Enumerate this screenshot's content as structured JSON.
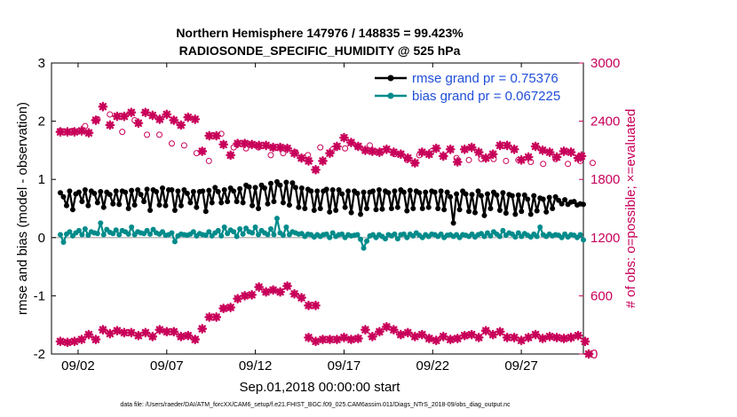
{
  "chart_data": {
    "type": "line",
    "title": "Northern Hemisphere 147976 / 148835 = 99.423%",
    "subtitle": "RADIOSONDE_SPECIFIC_HUMIDITY @ 525 hPa",
    "xlabel": "Sep.01,2018 00:00:00 start",
    "ylabel": "rmse and bias (model - observation)",
    "ylabel_right": "# of obs: o=possible; ×=evaluated",
    "footnote": "data file: /Users/raeder/DAI/ATM_forcXX/CAM6_setup/f.e21.FHIST_BGC.f09_025.CAM6assim.011/Diags_NTrS_2018-09/obs_diag_output.nc",
    "xlim": [
      0.5,
      30.5
    ],
    "ylim": [
      -2,
      3
    ],
    "ylim_right": [
      0,
      3000
    ],
    "x_ticks": [
      2,
      7,
      12,
      17,
      22,
      27
    ],
    "x_tick_labels": [
      "09/02",
      "09/07",
      "09/12",
      "09/17",
      "09/22",
      "09/27"
    ],
    "y_ticks": [
      -2,
      -1,
      0,
      1,
      2,
      3
    ],
    "y_tick_labels": [
      "-2",
      "-1",
      "0",
      "1",
      "2",
      "3"
    ],
    "y_right_ticks": [
      0,
      600,
      1200,
      1800,
      2400,
      3000
    ],
    "y_right_tick_labels": [
      "0",
      "600",
      "1200",
      "1800",
      "2400",
      "3000"
    ],
    "legend": [
      "rmse grand pr = 0.75376",
      "bias grand pr = 0.067225"
    ],
    "colors": {
      "rmse": "#000000",
      "bias": "#008b8b",
      "obs": "#c8005a",
      "zero_line": "#bbbbbb"
    },
    "series": [
      {
        "name": "rmse",
        "values": [
          0.77,
          0.7,
          0.55,
          0.8,
          0.48,
          0.75,
          0.78,
          0.62,
          0.82,
          0.55,
          0.8,
          0.76,
          0.6,
          0.79,
          0.52,
          0.78,
          0.74,
          0.58,
          0.8,
          0.57,
          0.8,
          0.78,
          0.5,
          0.81,
          0.56,
          0.82,
          0.74,
          0.62,
          0.83,
          0.47,
          0.82,
          0.79,
          0.56,
          0.85,
          0.55,
          0.82,
          0.82,
          0.47,
          0.8,
          0.55,
          0.82,
          0.76,
          0.6,
          0.79,
          0.52,
          0.79,
          0.8,
          0.45,
          0.81,
          0.6,
          0.86,
          0.79,
          0.6,
          0.82,
          0.62,
          0.85,
          0.8,
          0.62,
          0.84,
          0.6,
          0.9,
          0.87,
          0.55,
          0.86,
          0.5,
          0.9,
          0.85,
          0.58,
          0.93,
          0.62,
          0.96,
          0.9,
          0.6,
          0.95,
          0.56,
          0.94,
          0.86,
          0.52,
          0.85,
          0.5,
          0.83,
          0.8,
          0.47,
          0.8,
          0.5,
          0.8,
          0.83,
          0.44,
          0.82,
          0.47,
          0.82,
          0.75,
          0.52,
          0.8,
          0.43,
          0.8,
          0.76,
          0.4,
          0.78,
          0.5,
          0.78,
          0.8,
          0.48,
          0.82,
          0.49,
          0.8,
          0.77,
          0.5,
          0.8,
          0.52,
          0.82,
          0.78,
          0.46,
          0.81,
          0.5,
          0.8,
          0.77,
          0.5,
          0.78,
          0.52,
          0.8,
          0.78,
          0.5,
          0.8,
          0.48,
          0.78,
          0.7,
          0.25,
          0.75,
          0.48,
          0.8,
          0.75,
          0.45,
          0.74,
          0.43,
          0.8,
          0.72,
          0.38,
          0.75,
          0.5,
          0.78,
          0.73,
          0.47,
          0.77,
          0.42,
          0.74,
          0.72,
          0.4,
          0.73,
          0.45,
          0.73,
          0.66,
          0.4,
          0.72,
          0.46,
          0.68,
          0.66,
          0.44,
          0.69,
          0.5,
          0.7,
          0.64,
          0.58,
          0.65,
          0.57,
          0.61,
          0.62,
          0.56,
          0.58,
          0.57
        ]
      },
      {
        "name": "bias",
        "values": [
          0.05,
          -0.08,
          0.06,
          0.1,
          0.03,
          0.08,
          0.12,
          0.05,
          0.15,
          0.04,
          0.1,
          0.08,
          0.07,
          0.25,
          0.05,
          0.14,
          0.09,
          0.07,
          0.13,
          0.05,
          0.12,
          0.1,
          0.06,
          0.18,
          0.05,
          0.1,
          0.08,
          0.07,
          0.12,
          0.06,
          0.14,
          0.08,
          0.06,
          0.1,
          0.04,
          0.05,
          0.08,
          -0.07,
          0.03,
          0.06,
          0.05,
          0.04,
          0.06,
          0.1,
          0.03,
          0.07,
          0.05,
          0.04,
          0.1,
          0.03,
          0.08,
          0.12,
          0.03,
          0.18,
          0.07,
          0.13,
          0.1,
          0.02,
          0.15,
          0.06,
          0.16,
          0.1,
          0.08,
          0.18,
          0.05,
          0.12,
          0.08,
          0.05,
          0.15,
          0.05,
          0.33,
          0.08,
          0.04,
          0.18,
          0.05,
          0.1,
          0.08,
          0.06,
          0.07,
          0.02,
          0.06,
          0.05,
          0.01,
          0.05,
          0.02,
          0.05,
          0.06,
          0.0,
          0.08,
          0.02,
          0.05,
          0.06,
          0.0,
          0.05,
          0.03,
          0.04,
          0.05,
          -0.03,
          -0.18,
          -0.06,
          0.03,
          0.05,
          0.0,
          0.05,
          0.02,
          -0.02,
          0.05,
          0.03,
          0.06,
          -0.02,
          0.05,
          0.06,
          0.0,
          0.06,
          0.03,
          0.08,
          0.04,
          0.0,
          0.05,
          0.02,
          0.06,
          0.05,
          0.02,
          0.06,
          0.0,
          0.04,
          0.05,
          0.02,
          0.05,
          0.0,
          0.05,
          0.04,
          0.02,
          0.06,
          0.01,
          0.05,
          0.07,
          0.02,
          0.08,
          0.03,
          0.1,
          0.06,
          0.02,
          0.12,
          0.04,
          0.08,
          0.06,
          0.01,
          0.08,
          0.02,
          0.07,
          0.04,
          0.01,
          0.06,
          0.02,
          0.18,
          0.05,
          0.02,
          0.06,
          0.03,
          0.05,
          0.04,
          0.0,
          0.06,
          0.01,
          0.05,
          0.04,
          0.0,
          0.05,
          -0.04
        ]
      },
      {
        "name": "obs_possible",
        "values": [
          2300,
          2300,
          2300,
          2300,
          2300,
          2280,
          2400,
          2550,
          2350,
          2450,
          2450,
          2500,
          2420,
          2350,
          2470,
          2440,
          2470,
          2410,
          2370,
          2440,
          2290,
          2430,
          2390,
          2430,
          2410,
          2410,
          2120,
          2260,
          2260,
          2230,
          2160,
          2050,
          2260,
          2170,
          2180,
          2180,
          2170,
          2160,
          2160,
          2130,
          2150,
          2150,
          2090,
          2040,
          2070,
          2020,
          1980,
          1930,
          1990,
          2070,
          2140,
          2170,
          2270,
          2130,
          2210,
          2140,
          2130,
          2160,
          2100,
          2120,
          2120,
          2140,
          2100,
          2080,
          2130,
          2070,
          2050,
          2080,
          2050,
          1980,
          2030,
          2050,
          2070,
          2070,
          2130,
          2080,
          2080,
          2140,
          2060,
          1980,
          2050,
          2150,
          2080,
          2120,
          2130,
          2140,
          2090,
          2000,
          2110,
          2120,
          2140,
          2070,
          2120,
          2050,
          2100,
          2130,
          2140,
          2070,
          2030,
          2040,
          2150,
          2130,
          2060,
          2020,
          2090,
          2080,
          2070,
          2060,
          2060,
          2090,
          2020,
          2130,
          2000,
          2090,
          2120,
          2090,
          2050,
          2010,
          1980,
          2030,
          2090,
          2020,
          2050,
          2080,
          2040,
          2030,
          2050,
          2000,
          2020,
          1990,
          2020,
          1980,
          2000,
          2060,
          1990,
          2020,
          2010,
          1970,
          2010,
          1990,
          2010,
          1980,
          1970,
          2010,
          1990,
          1970,
          2010,
          1990,
          2000,
          1980,
          2040,
          1970,
          1980,
          1950,
          1990,
          2000,
          1960,
          1990,
          1980,
          1960,
          2010,
          1990,
          1990,
          1990,
          1960,
          1990,
          1980,
          1960,
          1990,
          1970,
          1960,
          1980,
          1970,
          1980,
          1990,
          1970
        ]
      },
      {
        "name": "obs_evaluated_visible",
        "points": [
          [
            1.0,
            2290
          ],
          [
            1.4,
            2290
          ],
          [
            1.8,
            2290
          ],
          [
            2.2,
            2300
          ],
          [
            2.6,
            2280
          ],
          [
            3.0,
            2410
          ],
          [
            3.4,
            2550
          ],
          [
            3.8,
            2360
          ],
          [
            4.2,
            2450
          ],
          [
            4.6,
            2450
          ],
          [
            5.0,
            2490
          ],
          [
            5.4,
            2380
          ],
          [
            5.8,
            2490
          ],
          [
            6.2,
            2460
          ],
          [
            6.6,
            2420
          ],
          [
            7.0,
            2470
          ],
          [
            7.4,
            2410
          ],
          [
            7.8,
            2360
          ],
          [
            8.2,
            2440
          ],
          [
            8.6,
            2420
          ],
          [
            9.0,
            2090
          ],
          [
            9.4,
            2250
          ],
          [
            9.8,
            2250
          ],
          [
            10.2,
            2160
          ],
          [
            10.6,
            2050
          ],
          [
            11.0,
            2170
          ],
          [
            11.4,
            2170
          ],
          [
            11.8,
            2160
          ],
          [
            12.2,
            2150
          ],
          [
            12.6,
            2150
          ],
          [
            13.0,
            2130
          ],
          [
            13.4,
            2130
          ],
          [
            13.8,
            2120
          ],
          [
            14.2,
            2070
          ],
          [
            14.6,
            2020
          ],
          [
            15.0,
            1990
          ],
          [
            15.4,
            1900
          ],
          [
            15.8,
            1990
          ],
          [
            16.2,
            2070
          ],
          [
            16.6,
            2140
          ],
          [
            17.0,
            2230
          ],
          [
            17.4,
            2180
          ],
          [
            17.8,
            2140
          ],
          [
            18.2,
            2100
          ],
          [
            18.6,
            2090
          ],
          [
            19.0,
            2080
          ],
          [
            19.4,
            2110
          ],
          [
            19.8,
            2080
          ],
          [
            20.2,
            2060
          ],
          [
            20.6,
            2020
          ],
          [
            21.0,
            1970
          ],
          [
            21.4,
            2080
          ],
          [
            21.8,
            2060
          ],
          [
            22.2,
            2120
          ],
          [
            22.6,
            2040
          ],
          [
            23.0,
            2110
          ],
          [
            23.4,
            1980
          ],
          [
            23.8,
            2110
          ],
          [
            24.2,
            2130
          ],
          [
            24.6,
            2080
          ],
          [
            25.0,
            2020
          ],
          [
            25.4,
            2060
          ],
          [
            25.8,
            2150
          ],
          [
            26.2,
            2150
          ],
          [
            26.6,
            2110
          ],
          [
            27.0,
            2000
          ],
          [
            27.4,
            2030
          ],
          [
            27.8,
            2140
          ],
          [
            28.2,
            2100
          ],
          [
            28.6,
            2080
          ],
          [
            29.0,
            2030
          ],
          [
            29.4,
            2090
          ],
          [
            29.8,
            2080
          ],
          [
            30.2,
            2020
          ],
          [
            30.4,
            2040
          ],
          [
            15.0,
            170
          ],
          [
            15.4,
            130
          ],
          [
            15.8,
            150
          ],
          [
            16.2,
            150
          ],
          [
            16.6,
            150
          ],
          [
            17.0,
            170
          ],
          [
            17.4,
            150
          ],
          [
            17.8,
            160
          ],
          [
            18.2,
            250
          ],
          [
            18.6,
            180
          ],
          [
            19.0,
            230
          ],
          [
            19.4,
            280
          ],
          [
            19.8,
            250
          ],
          [
            20.2,
            200
          ],
          [
            20.6,
            220
          ],
          [
            21.0,
            180
          ],
          [
            21.4,
            200
          ],
          [
            21.8,
            160
          ],
          [
            22.2,
            140
          ],
          [
            22.6,
            180
          ],
          [
            23.0,
            150
          ],
          [
            23.4,
            160
          ],
          [
            23.8,
            190
          ],
          [
            24.2,
            200
          ],
          [
            24.6,
            170
          ],
          [
            25.0,
            240
          ],
          [
            25.4,
            200
          ],
          [
            25.8,
            230
          ],
          [
            26.2,
            170
          ],
          [
            26.6,
            170
          ],
          [
            27.0,
            140
          ],
          [
            27.4,
            170
          ],
          [
            27.8,
            200
          ],
          [
            28.2,
            160
          ],
          [
            28.6,
            180
          ],
          [
            29.0,
            170
          ],
          [
            29.4,
            160
          ],
          [
            29.8,
            170
          ],
          [
            30.2,
            190
          ],
          [
            30.6,
            130
          ],
          [
            30.8,
            0
          ]
        ]
      },
      {
        "name": "obs_evaluated_low",
        "points": [
          [
            1.0,
            130
          ],
          [
            1.4,
            120
          ],
          [
            1.8,
            130
          ],
          [
            2.2,
            150
          ],
          [
            2.6,
            200
          ],
          [
            3.0,
            150
          ],
          [
            3.4,
            250
          ],
          [
            3.8,
            210
          ],
          [
            4.2,
            240
          ],
          [
            4.6,
            220
          ],
          [
            5.0,
            220
          ],
          [
            5.4,
            190
          ],
          [
            5.8,
            220
          ],
          [
            6.2,
            180
          ],
          [
            6.6,
            250
          ],
          [
            7.0,
            230
          ],
          [
            7.4,
            230
          ],
          [
            7.8,
            180
          ],
          [
            8.2,
            190
          ],
          [
            8.6,
            150
          ],
          [
            9.0,
            260
          ],
          [
            9.4,
            380
          ],
          [
            9.8,
            380
          ],
          [
            10.2,
            470
          ],
          [
            10.6,
            480
          ],
          [
            11.0,
            570
          ],
          [
            11.4,
            600
          ],
          [
            11.8,
            610
          ],
          [
            12.2,
            690
          ],
          [
            12.6,
            640
          ],
          [
            13.0,
            660
          ],
          [
            13.4,
            640
          ],
          [
            13.8,
            700
          ],
          [
            14.2,
            620
          ],
          [
            14.6,
            580
          ],
          [
            15.0,
            500
          ],
          [
            15.4,
            500
          ]
        ]
      }
    ]
  }
}
